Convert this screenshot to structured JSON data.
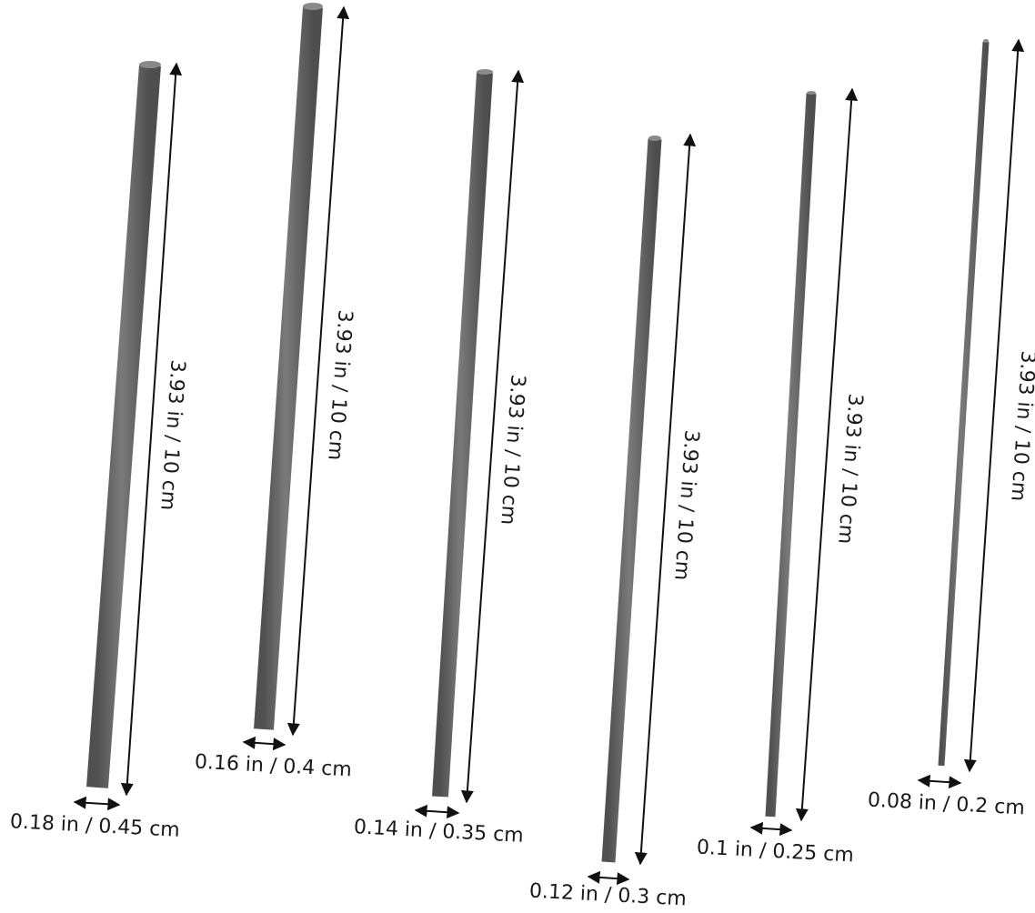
{
  "rods": [
    {
      "length_label": "3.93 in / 10 cm",
      "diameter_label": "0.18 in / 0.45 cm"
    },
    {
      "length_label": "3.93 in / 10 cm",
      "diameter_label": "0.16 in / 0.4 cm"
    },
    {
      "length_label": "3.93 in / 10 cm",
      "diameter_label": "0.14 in / 0.35 cm"
    },
    {
      "length_label": "3.93 in / 10 cm",
      "diameter_label": "0.12 in / 0.3 cm"
    },
    {
      "length_label": "3.93 in / 10 cm",
      "diameter_label": "0.1 in / 0.25 cm"
    },
    {
      "length_label": "3.93 in / 10 cm",
      "diameter_label": "0.08 in / 0.2 cm"
    }
  ],
  "colors": {
    "rod": "#6b6b6b",
    "rod_highlight": "#8a8a8a",
    "rod_shadow": "#4a4a4a",
    "arrow": "#111111"
  }
}
